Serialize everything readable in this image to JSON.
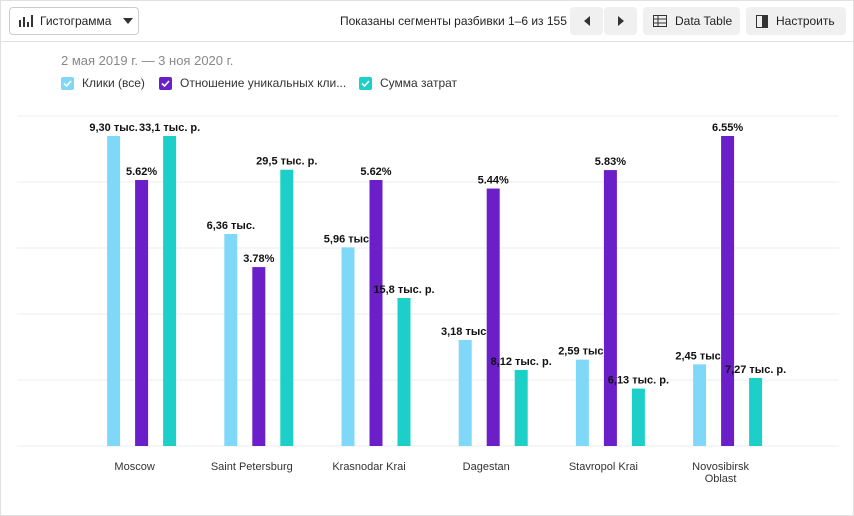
{
  "toolbar": {
    "chart_type": "Гистограмма",
    "pagination": "Показаны сегменты разбивки 1–6 из 155",
    "data_table": "Data Table",
    "settings": "Настроить"
  },
  "date_range": "2 мая 2019 г. — 3 ноя 2020 г.",
  "chart_data": {
    "type": "bar",
    "categories": [
      "Moscow",
      "Saint Petersburg",
      "Krasnodar Krai",
      "Dagestan",
      "Stavropol Krai",
      "Novosibirsk Oblast"
    ],
    "series": [
      {
        "name": "Клики (все)",
        "color": "#7fd8f8",
        "values": [
          9.3,
          6.36,
          5.96,
          3.18,
          2.59,
          2.45
        ],
        "value_labels": [
          "9,30 тыс.",
          "6,36 тыс.",
          "5,96 тыс.",
          "3,18 тыс.",
          "2,59 тыс.",
          "2,45 тыс."
        ]
      },
      {
        "name": "Отношение уникальных кли...",
        "color": "#6a1fc9",
        "values": [
          5.62,
          3.78,
          5.62,
          5.44,
          5.83,
          6.55
        ],
        "value_labels": [
          "5.62%",
          "3.78%",
          "5.62%",
          "5.44%",
          "5.83%",
          "6.55%"
        ]
      },
      {
        "name": "Сумма затрат",
        "color": "#1ccfc9",
        "values": [
          33.1,
          29.5,
          15.8,
          8.12,
          6.13,
          7.27
        ],
        "value_labels": [
          "33,1 тыс. р.",
          "29,5 тыс. р.",
          "15,8 тыс. р.",
          "8,12 тыс. р.",
          "6,13 тыс. р.",
          "7,27 тыс. р."
        ]
      }
    ]
  }
}
